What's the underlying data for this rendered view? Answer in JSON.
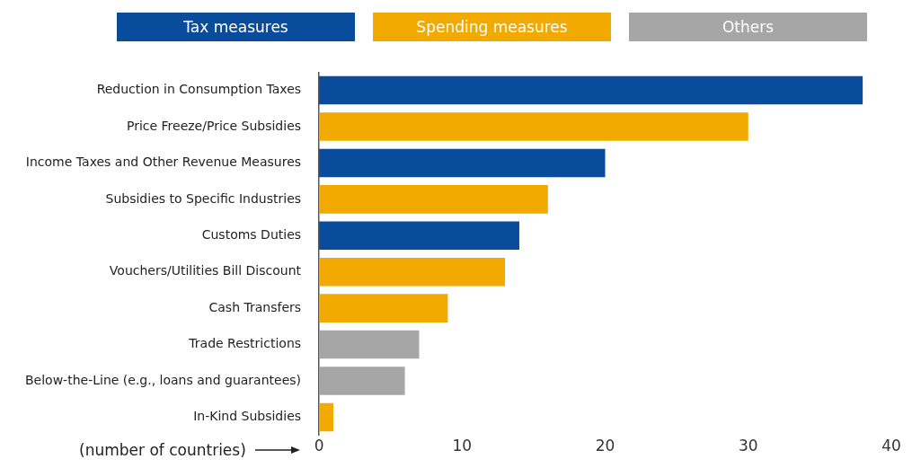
{
  "chart_data": {
    "type": "bar",
    "orientation": "horizontal",
    "xlabel": "(number of countries)",
    "categories": [
      "Reduction in Consumption Taxes",
      "Price Freeze/Price Subsidies",
      "Income Taxes and Other Revenue Measures",
      "Subsidies to Specific Industries",
      "Customs Duties",
      "Vouchers/Utilities Bill Discount",
      "Cash Transfers",
      "Trade Restrictions",
      "Below-the-Line (e.g., loans and guarantees)",
      "In-Kind Subsidies"
    ],
    "series": [
      {
        "name": "Tax measures",
        "color": "#0a4c9c",
        "values": [
          38,
          null,
          20,
          null,
          14,
          null,
          null,
          null,
          null,
          null
        ]
      },
      {
        "name": "Spending measures",
        "color": "#f2aa00",
        "values": [
          null,
          30,
          null,
          16,
          null,
          13,
          9,
          null,
          null,
          1
        ]
      },
      {
        "name": "Others",
        "color": "#a6a6a6",
        "values": [
          null,
          null,
          null,
          null,
          null,
          null,
          null,
          7,
          6,
          null
        ]
      }
    ],
    "xlim": [
      0,
      40
    ],
    "xticks": [
      0,
      10,
      20,
      30,
      40
    ],
    "grid": false,
    "legend": "top"
  }
}
